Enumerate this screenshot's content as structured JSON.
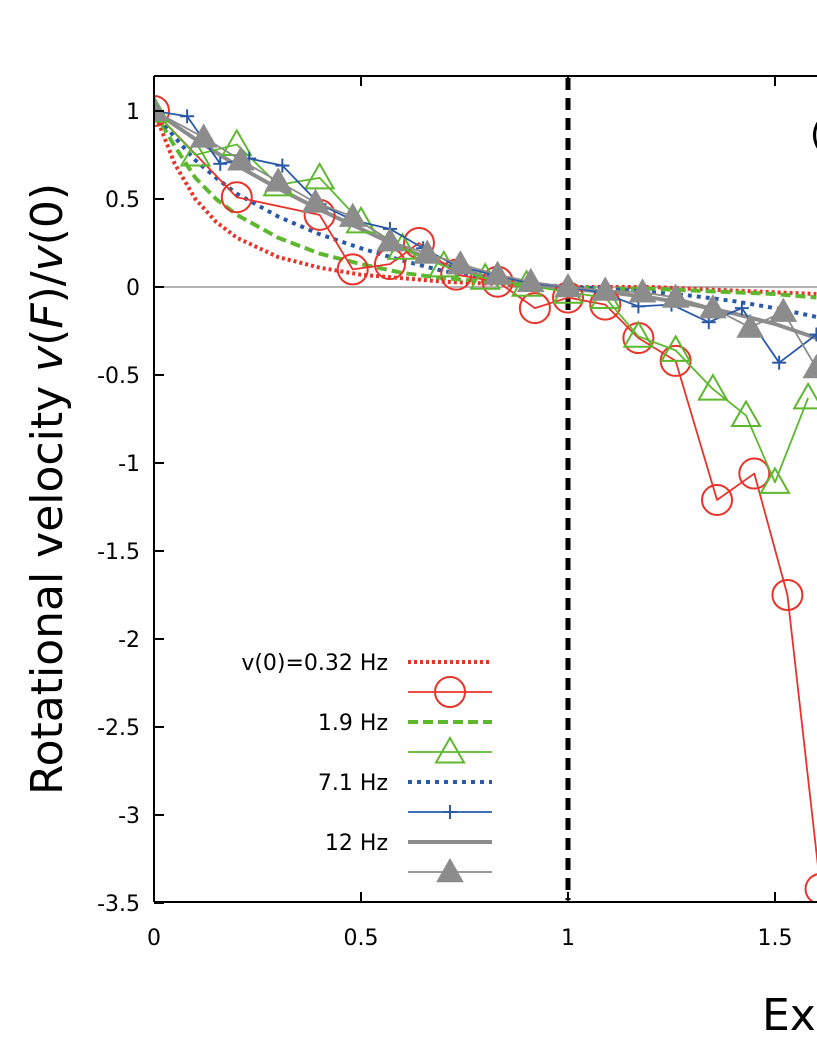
{
  "chart_data": {
    "type": "line",
    "title": "",
    "ylabel": "Rotational velocity v(F)/v(0)",
    "xlabel": "Ex",
    "corner_text": "(",
    "xlim": [
      0,
      1.6
    ],
    "ylim": [
      -3.5,
      1.2
    ],
    "xticks": [
      {
        "value": 0,
        "label": "0"
      },
      {
        "value": 0.5,
        "label": "0.5"
      },
      {
        "value": 1,
        "label": "1"
      },
      {
        "value": 1.5,
        "label": "1.5"
      }
    ],
    "yticks": [
      {
        "value": 1,
        "label": "1"
      },
      {
        "value": 0.5,
        "label": "0.5"
      },
      {
        "value": 0,
        "label": "0"
      },
      {
        "value": -0.5,
        "label": "-0.5"
      },
      {
        "value": -1,
        "label": "-1"
      },
      {
        "value": -1.5,
        "label": "-1.5"
      },
      {
        "value": -2,
        "label": "-2"
      },
      {
        "value": -2.5,
        "label": "-2.5"
      },
      {
        "value": -3,
        "label": "-3"
      },
      {
        "value": -3.5,
        "label": "-3.5"
      }
    ],
    "reference_lines": [
      {
        "axis": "y",
        "value": 0,
        "color": "#999999",
        "style": "solid"
      },
      {
        "axis": "x",
        "value": 1,
        "color": "#000000",
        "style": "dashed"
      }
    ],
    "legend": [
      {
        "label": "v(0)=0.32 Hz",
        "color": "#e8332a",
        "line": "dotted",
        "marker": "none"
      },
      {
        "label": "",
        "color": "#e8332a",
        "line": "solid",
        "marker": "circle"
      },
      {
        "label": "1.9 Hz",
        "color": "#5db82e",
        "line": "dashed",
        "marker": "none"
      },
      {
        "label": "",
        "color": "#5db82e",
        "line": "solid",
        "marker": "triangle-open"
      },
      {
        "label": "7.1 Hz",
        "color": "#2a59a8",
        "line": "dotted",
        "marker": "none"
      },
      {
        "label": "",
        "color": "#2a59a8",
        "line": "solid",
        "marker": "plus"
      },
      {
        "label": "12 Hz",
        "color": "#8c8c8c",
        "line": "solid-thick",
        "marker": "none"
      },
      {
        "label": "",
        "color": "#8c8c8c",
        "line": "solid",
        "marker": "triangle-filled"
      }
    ],
    "series": [
      {
        "color": "#e8332a",
        "style": "dotted",
        "marker": "none",
        "width": 4,
        "x": [
          0,
          0.05,
          0.1,
          0.15,
          0.2,
          0.3,
          0.4,
          0.5,
          0.6,
          0.7,
          0.8,
          0.9,
          1.0,
          1.1,
          1.2,
          1.3,
          1.4,
          1.5,
          1.6
        ],
        "y": [
          1,
          0.7,
          0.5,
          0.37,
          0.28,
          0.17,
          0.11,
          0.07,
          0.05,
          0.03,
          0.02,
          0.01,
          0,
          0,
          0,
          -0.01,
          -0.02,
          -0.03,
          -0.04
        ]
      },
      {
        "color": "#e8332a",
        "style": "dashed",
        "marker": "none",
        "width": 4,
        "x": [
          0,
          0.05,
          0.1,
          0.15,
          0.2,
          0.3,
          0.4,
          0.5,
          0.6,
          0.7,
          0.8,
          0.9,
          1.0,
          1.1,
          1.2,
          1.3,
          1.4,
          1.5,
          1.6
        ],
        "y": [
          1,
          0.8,
          0.62,
          0.5,
          0.41,
          0.28,
          0.19,
          0.13,
          0.08,
          0.05,
          0.03,
          0.01,
          0,
          -0.01,
          -0.01,
          -0.02,
          -0.03,
          -0.04,
          -0.06
        ],
        "override_color": "#5db82e"
      },
      {
        "color": "#2a59a8",
        "style": "dotted-blue",
        "marker": "none",
        "width": 4,
        "x": [
          0,
          0.05,
          0.1,
          0.15,
          0.2,
          0.3,
          0.4,
          0.5,
          0.6,
          0.7,
          0.8,
          0.9,
          1.0,
          1.1,
          1.2,
          1.3,
          1.4,
          1.5,
          1.6
        ],
        "y": [
          1,
          0.85,
          0.72,
          0.62,
          0.53,
          0.4,
          0.3,
          0.22,
          0.15,
          0.09,
          0.05,
          0.02,
          0,
          -0.01,
          -0.03,
          -0.05,
          -0.08,
          -0.12,
          -0.17
        ]
      },
      {
        "color": "#8c8c8c",
        "style": "solid-thick",
        "marker": "none",
        "width": 4,
        "x": [
          0,
          0.1,
          0.2,
          0.3,
          0.4,
          0.5,
          0.6,
          0.7,
          0.8,
          0.9,
          1.0,
          1.1,
          1.2,
          1.3,
          1.4,
          1.5,
          1.6
        ],
        "y": [
          1,
          0.84,
          0.69,
          0.56,
          0.44,
          0.33,
          0.22,
          0.13,
          0.06,
          0.02,
          -0.01,
          -0.03,
          -0.06,
          -0.1,
          -0.15,
          -0.21,
          -0.29
        ]
      },
      {
        "color": "#e8332a",
        "style": "solid",
        "marker": "circle",
        "width": 1.8,
        "x": [
          0,
          0.2,
          0.4,
          0.48,
          0.57,
          0.64,
          0.73,
          0.83,
          0.92,
          1.0,
          1.09,
          1.17,
          1.26,
          1.36,
          1.45,
          1.53,
          1.61
        ],
        "y": [
          1,
          0.51,
          0.41,
          0.1,
          0.13,
          0.25,
          0.07,
          0.03,
          -0.12,
          -0.06,
          -0.1,
          -0.29,
          -0.42,
          -1.21,
          -1.06,
          -1.75,
          -3.42
        ]
      },
      {
        "color": "#5db82e",
        "style": "solid",
        "marker": "triangle-open",
        "width": 1.8,
        "x": [
          0,
          0.1,
          0.2,
          0.3,
          0.4,
          0.5,
          0.6,
          0.7,
          0.8,
          0.9,
          1.0,
          1.09,
          1.17,
          1.26,
          1.35,
          1.43,
          1.5,
          1.58
        ],
        "y": [
          1,
          0.75,
          0.81,
          0.58,
          0.62,
          0.37,
          0.22,
          0.12,
          0.05,
          0.01,
          -0.03,
          -0.06,
          -0.28,
          -0.36,
          -0.58,
          -0.73,
          -1.11,
          -0.63
        ]
      },
      {
        "color": "#2a59a8",
        "style": "solid",
        "marker": "plus",
        "width": 1.8,
        "x": [
          0,
          0.08,
          0.16,
          0.23,
          0.31,
          0.4,
          0.48,
          0.57,
          0.65,
          0.73,
          0.82,
          0.91,
          1.0,
          1.08,
          1.17,
          1.25,
          1.34,
          1.42,
          1.51,
          1.6
        ],
        "y": [
          1,
          0.97,
          0.7,
          0.73,
          0.69,
          0.47,
          0.38,
          0.33,
          0.22,
          0.12,
          0.07,
          0.02,
          0,
          -0.03,
          -0.11,
          -0.1,
          -0.2,
          -0.12,
          -0.43,
          -0.27
        ]
      },
      {
        "color": "#8c8c8c",
        "style": "solid",
        "marker": "triangle-filled",
        "width": 1.8,
        "x": [
          0,
          0.12,
          0.21,
          0.3,
          0.39,
          0.48,
          0.57,
          0.66,
          0.74,
          0.83,
          0.91,
          1.0,
          1.09,
          1.18,
          1.26,
          1.35,
          1.44,
          1.52,
          1.6
        ],
        "y": [
          1,
          0.85,
          0.72,
          0.6,
          0.48,
          0.4,
          0.26,
          0.19,
          0.13,
          0.07,
          0.03,
          0,
          -0.02,
          -0.03,
          -0.06,
          -0.12,
          -0.23,
          -0.14,
          -0.46
        ]
      }
    ]
  }
}
